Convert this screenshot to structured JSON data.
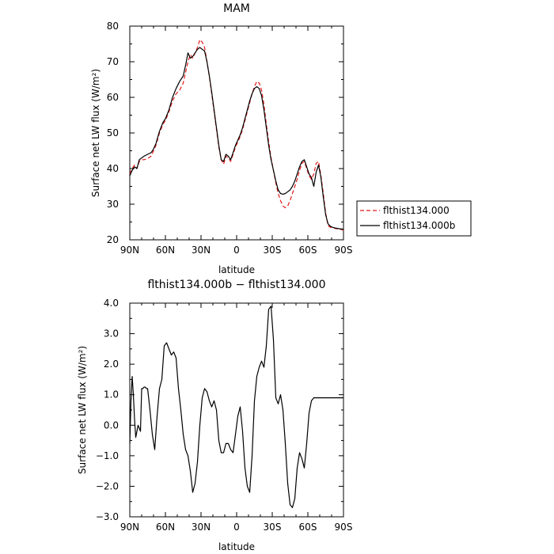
{
  "chart_data": [
    {
      "type": "line",
      "title": "MAM",
      "xlabel": "latitude",
      "ylabel": "Surface net LW flux (W/m²)",
      "xlim": [
        90,
        -90
      ],
      "ylim": [
        20,
        80
      ],
      "x_ticks": [
        90,
        60,
        30,
        0,
        -30,
        -60,
        -90
      ],
      "x_tick_labels": [
        "90N",
        "60N",
        "30N",
        "0",
        "30S",
        "60S",
        "90S"
      ],
      "y_ticks": [
        20,
        30,
        40,
        50,
        60,
        70,
        80
      ],
      "y_tick_labels": [
        "20",
        "30",
        "40",
        "50",
        "60",
        "70",
        "80"
      ],
      "legend_position": "right, outside plot",
      "series": [
        {
          "name": "flthist134.000",
          "color": "#e31a1c",
          "dash": "dashed",
          "x": [
            90,
            88,
            86,
            84,
            82,
            80,
            78,
            75,
            72,
            70,
            68,
            65,
            62,
            60,
            57,
            54,
            51,
            48,
            45,
            43,
            41,
            39,
            37,
            35,
            33,
            31,
            29,
            27,
            25,
            23,
            21,
            19,
            17,
            15,
            13,
            11,
            9,
            7,
            5,
            3,
            1,
            -1,
            -3,
            -5,
            -7,
            -9,
            -11,
            -13,
            -15,
            -17,
            -19,
            -21,
            -23,
            -25,
            -27,
            -29,
            -31,
            -33,
            -35,
            -37,
            -39,
            -41,
            -43,
            -45,
            -47,
            -49,
            -51,
            -53,
            -55,
            -57,
            -59,
            -61,
            -63,
            -65,
            -67,
            -69,
            -71,
            -73,
            -75,
            -77,
            -79,
            -81,
            -83,
            -85,
            -87,
            -89,
            -90
          ],
          "y": [
            38.5,
            40.0,
            41.0,
            40.0,
            42.0,
            42.5,
            42.5,
            42.8,
            43.5,
            45.0,
            46.5,
            50.0,
            52.5,
            53.5,
            56.0,
            59.0,
            61.0,
            62.0,
            64.0,
            67.0,
            70.0,
            72.0,
            71.0,
            72.5,
            74.0,
            76.2,
            75.5,
            74.0,
            70.0,
            66.0,
            61.0,
            56.0,
            51.0,
            46.0,
            42.5,
            41.2,
            43.5,
            43.0,
            42.0,
            44.0,
            46.0,
            47.5,
            49.0,
            51.0,
            53.5,
            56.0,
            58.5,
            61.0,
            63.0,
            64.5,
            64.0,
            62.0,
            58.0,
            52.5,
            47.5,
            43.0,
            39.5,
            36.0,
            33.0,
            31.0,
            29.5,
            29.0,
            29.5,
            31.0,
            33.0,
            35.0,
            37.0,
            39.5,
            41.5,
            42.0,
            40.0,
            38.0,
            37.0,
            38.5,
            41.5,
            42.0,
            38.0,
            33.0,
            27.5,
            24.0,
            23.5,
            23.3,
            23.2,
            23.1,
            23.0,
            22.8,
            22.7
          ]
        },
        {
          "name": "flthist134.000b",
          "color": "#000000",
          "dash": "solid",
          "x": [
            90,
            88,
            86,
            84,
            82,
            80,
            78,
            75,
            72,
            70,
            68,
            65,
            62,
            60,
            57,
            54,
            51,
            48,
            45,
            43,
            41,
            39,
            37,
            35,
            33,
            31,
            29,
            27,
            25,
            23,
            21,
            19,
            17,
            15,
            13,
            11,
            9,
            7,
            5,
            3,
            1,
            -1,
            -3,
            -5,
            -7,
            -9,
            -11,
            -13,
            -15,
            -17,
            -19,
            -21,
            -23,
            -25,
            -27,
            -29,
            -31,
            -33,
            -35,
            -37,
            -39,
            -41,
            -43,
            -45,
            -47,
            -49,
            -51,
            -53,
            -55,
            -57,
            -59,
            -61,
            -63,
            -65,
            -67,
            -69,
            -71,
            -73,
            -75,
            -77,
            -79,
            -81,
            -83,
            -85,
            -87,
            -89,
            -90
          ],
          "y": [
            38.0,
            39.5,
            40.5,
            40.0,
            42.5,
            43.0,
            43.5,
            44.0,
            44.5,
            45.5,
            47.0,
            50.5,
            53.0,
            54.0,
            56.5,
            60.0,
            62.5,
            64.5,
            66.0,
            69.0,
            72.5,
            71.0,
            71.5,
            72.5,
            73.5,
            74.0,
            73.5,
            73.0,
            70.0,
            66.0,
            61.5,
            56.5,
            51.5,
            46.5,
            42.5,
            42.0,
            44.0,
            43.5,
            42.5,
            44.5,
            46.5,
            48.0,
            49.5,
            51.5,
            54.0,
            56.5,
            59.0,
            61.0,
            62.5,
            63.0,
            62.5,
            60.5,
            56.5,
            51.5,
            46.5,
            42.5,
            39.5,
            36.5,
            34.0,
            33.0,
            32.8,
            33.0,
            33.5,
            34.0,
            35.0,
            36.5,
            38.5,
            40.5,
            42.0,
            42.5,
            40.5,
            38.5,
            37.5,
            35.0,
            39.0,
            41.0,
            37.5,
            32.0,
            27.0,
            24.5,
            23.8,
            23.5,
            23.3,
            23.2,
            23.1,
            23.0,
            23.0
          ]
        }
      ]
    },
    {
      "type": "line",
      "title": "flthist134.000b − flthist134.000",
      "xlabel": "latitude",
      "ylabel": "Surface net LW flux (W/m²)",
      "xlim": [
        90,
        -90
      ],
      "ylim": [
        -3.0,
        4.0
      ],
      "x_ticks": [
        90,
        60,
        30,
        0,
        -30,
        -60,
        -90
      ],
      "x_tick_labels": [
        "90N",
        "60N",
        "30N",
        "0",
        "30S",
        "60S",
        "90S"
      ],
      "y_ticks": [
        -3,
        -2,
        -1,
        0,
        1,
        2,
        3,
        4
      ],
      "y_tick_labels": [
        "−3.0",
        "−2.0",
        "−1.0",
        "0.0",
        "1.0",
        "2.0",
        "3.0",
        "4.0"
      ],
      "series": [
        {
          "color": "#000000",
          "dash": "solid",
          "x": [
            90,
            89,
            88,
            87,
            86,
            85,
            84,
            83,
            82,
            81,
            80,
            79,
            78,
            77,
            76,
            75,
            73,
            71,
            69,
            67,
            65,
            63,
            61,
            59,
            57,
            55,
            53,
            51,
            49,
            47,
            45,
            43,
            41,
            39,
            37,
            35,
            33,
            31,
            29,
            27,
            25,
            23,
            21,
            19,
            17,
            15,
            13,
            11,
            9,
            7,
            5,
            3,
            1,
            -1,
            -3,
            -5,
            -7,
            -9,
            -11,
            -13,
            -15,
            -17,
            -19,
            -21,
            -23,
            -25,
            -27,
            -29,
            -31,
            -33,
            -35,
            -37,
            -39,
            -41,
            -43,
            -45,
            -47,
            -49,
            -51,
            -53,
            -55,
            -57,
            -59,
            -61,
            -63,
            -65,
            -67,
            -69,
            -71,
            -73,
            -75,
            -77,
            -79,
            -81,
            -83,
            -85,
            -87,
            -89,
            -90
          ],
          "y": [
            -0.6,
            0.8,
            1.6,
            1.0,
            0.2,
            -0.4,
            -0.2,
            0.0,
            -0.1,
            -0.2,
            1.2,
            1.2,
            1.25,
            1.25,
            1.2,
            1.2,
            0.5,
            -0.3,
            -0.8,
            0.3,
            1.2,
            1.5,
            2.6,
            2.7,
            2.5,
            2.3,
            2.4,
            2.2,
            1.2,
            0.5,
            -0.3,
            -0.8,
            -1.0,
            -1.5,
            -2.2,
            -1.9,
            -1.2,
            0.0,
            0.9,
            1.2,
            1.1,
            0.8,
            0.6,
            0.8,
            0.5,
            -0.5,
            -0.9,
            -0.9,
            -0.6,
            -0.6,
            -0.8,
            -0.9,
            -0.3,
            0.3,
            0.6,
            -0.2,
            -1.4,
            -2.0,
            -2.2,
            -1.0,
            0.8,
            1.6,
            1.9,
            2.1,
            1.9,
            2.6,
            3.8,
            3.9,
            2.8,
            0.9,
            0.7,
            1.0,
            0.5,
            -0.6,
            -1.9,
            -2.6,
            -2.7,
            -2.4,
            -1.4,
            -0.9,
            -1.1,
            -1.4,
            -0.6,
            0.4,
            0.8,
            0.9,
            0.9,
            0.9,
            0.9,
            0.9,
            0.9,
            0.9,
            0.9,
            0.9,
            0.9,
            0.9,
            0.9,
            0.9,
            0.9
          ]
        }
      ]
    }
  ]
}
